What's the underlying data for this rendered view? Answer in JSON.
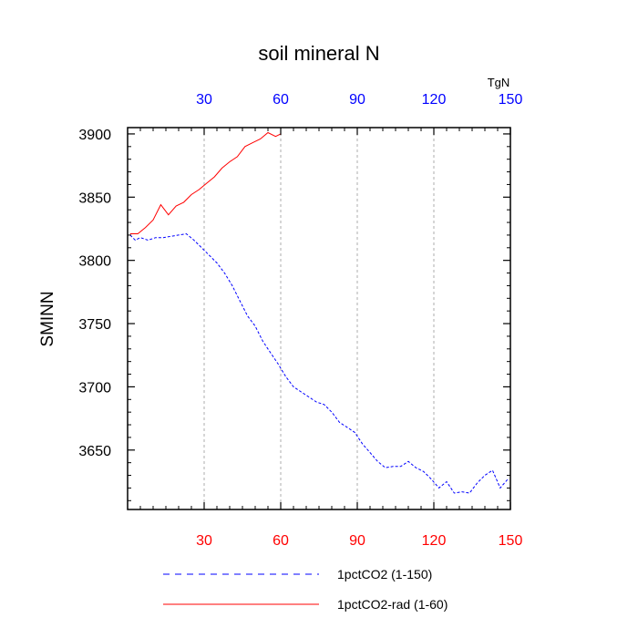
{
  "chart_data": {
    "type": "line",
    "title": "soil mineral N",
    "ylabel": "SMINN",
    "units": "TgN",
    "xlim": [
      0,
      150
    ],
    "ylim": [
      3603,
      3905
    ],
    "x_ticks": [
      30,
      60,
      90,
      120,
      150
    ],
    "x_tick_labels": [
      "30",
      "60",
      "90",
      "120",
      "150"
    ],
    "y_ticks": [
      3650,
      3700,
      3750,
      3800,
      3850,
      3900
    ],
    "y_tick_labels": [
      "3650",
      "3700",
      "3750",
      "3800",
      "3850",
      "3900"
    ],
    "grid": "vertical dashed at major x ticks",
    "colors": {
      "bottom_axis": "#ff0000",
      "top_axis": "#0000ff",
      "grid": "#999999"
    },
    "series": [
      {
        "name": "1pctCO2 (1-150)",
        "color": "#0000ff",
        "dash": "dashed",
        "x": [
          1,
          3,
          5,
          8,
          11,
          14,
          17,
          20,
          23,
          26,
          29,
          32,
          35,
          38,
          41,
          44,
          47,
          50,
          53,
          56,
          59,
          62,
          65,
          68,
          71,
          74,
          77,
          80,
          83,
          86,
          89,
          92,
          95,
          98,
          101,
          104,
          107,
          110,
          113,
          116,
          119,
          122,
          125,
          128,
          131,
          134,
          137,
          140,
          143,
          146,
          149
        ],
        "y": [
          3820,
          3816,
          3818,
          3816,
          3818,
          3818,
          3819,
          3820,
          3821,
          3816,
          3810,
          3804,
          3798,
          3790,
          3780,
          3768,
          3756,
          3748,
          3736,
          3727,
          3718,
          3708,
          3700,
          3696,
          3692,
          3688,
          3686,
          3680,
          3672,
          3668,
          3664,
          3655,
          3648,
          3641,
          3636,
          3637,
          3637,
          3641,
          3636,
          3633,
          3627,
          3620,
          3625,
          3616,
          3617,
          3616,
          3624,
          3630,
          3634,
          3620,
          3627
        ]
      },
      {
        "name": "1pctCO2-rad (1-60)",
        "color": "#ff0000",
        "dash": "solid",
        "x": [
          1,
          4,
          7,
          10,
          13,
          16,
          19,
          22,
          25,
          28,
          31,
          34,
          37,
          40,
          43,
          46,
          49,
          52,
          55,
          58,
          60
        ],
        "y": [
          3821,
          3821,
          3826,
          3832,
          3844,
          3836,
          3843,
          3846,
          3852,
          3856,
          3861,
          3866,
          3873,
          3878,
          3882,
          3890,
          3893,
          3896,
          3901,
          3898,
          3900
        ]
      }
    ]
  }
}
